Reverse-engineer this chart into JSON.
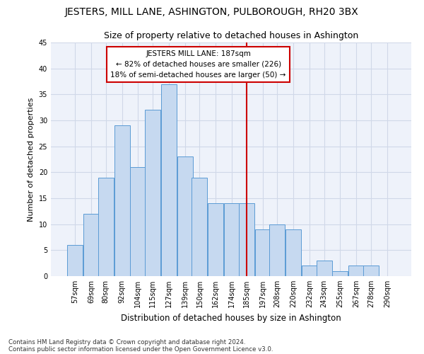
{
  "title": "JESTERS, MILL LANE, ASHINGTON, PULBOROUGH, RH20 3BX",
  "subtitle": "Size of property relative to detached houses in Ashington",
  "xlabel": "Distribution of detached houses by size in Ashington",
  "ylabel": "Number of detached properties",
  "bin_labels": [
    "57sqm",
    "69sqm",
    "80sqm",
    "92sqm",
    "104sqm",
    "115sqm",
    "127sqm",
    "139sqm",
    "150sqm",
    "162sqm",
    "174sqm",
    "185sqm",
    "197sqm",
    "208sqm",
    "220sqm",
    "232sqm",
    "243sqm",
    "255sqm",
    "267sqm",
    "278sqm",
    "290sqm"
  ],
  "bar_heights": [
    6,
    12,
    19,
    29,
    21,
    32,
    37,
    23,
    19,
    14,
    14,
    14,
    9,
    10,
    9,
    2,
    3,
    1,
    2,
    2,
    0
  ],
  "bar_color": "#c6d9f0",
  "bar_edge_color": "#5b9bd5",
  "marker_label": "JESTERS MILL LANE: 187sqm",
  "annotation_line1": "← 82% of detached houses are smaller (226)",
  "annotation_line2": "18% of semi-detached houses are larger (50) →",
  "marker_color": "#cc0000",
  "grid_color": "#d0d8e8",
  "footnote1": "Contains HM Land Registry data © Crown copyright and database right 2024.",
  "footnote2": "Contains public sector information licensed under the Open Government Licence v3.0.",
  "ylim": [
    0,
    45
  ],
  "yticks": [
    0,
    5,
    10,
    15,
    20,
    25,
    30,
    35,
    40,
    45
  ],
  "bin_width": 12,
  "bin_starts": [
    57,
    69,
    80,
    92,
    104,
    115,
    127,
    139,
    150,
    162,
    174,
    185,
    197,
    208,
    220,
    232,
    243,
    255,
    267,
    278,
    290
  ],
  "marker_bin_index": 11,
  "bg_color": "#eef2fa"
}
